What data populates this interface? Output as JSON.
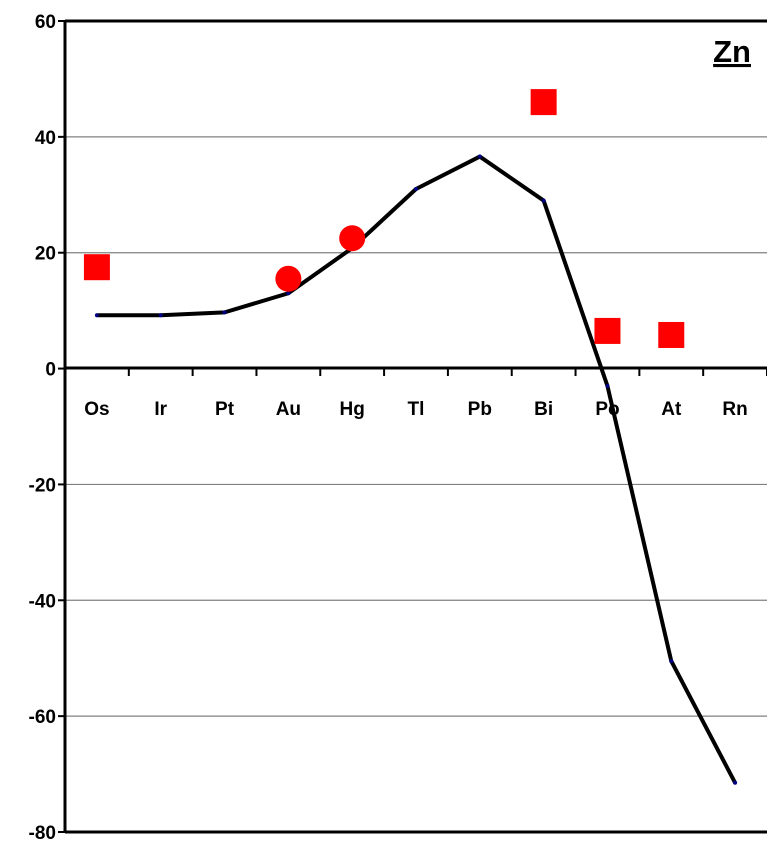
{
  "chart_data": {
    "type": "line",
    "panel_label": "Zn",
    "title": "",
    "xlabel": "",
    "ylabel": "",
    "categories": [
      "Os",
      "Ir",
      "Pt",
      "Au",
      "Hg",
      "Tl",
      "Pb",
      "Bi",
      "Po",
      "At",
      "Rn"
    ],
    "ylim": [
      -80,
      60
    ],
    "yticks": [
      60,
      40,
      20,
      0,
      -20,
      -40,
      -60,
      -80
    ],
    "grid": true,
    "legend": "none",
    "series": [
      {
        "kind": "line",
        "values": [
          9.2,
          9.2,
          9.7,
          13.0,
          20.8,
          31.0,
          36.6,
          29.0,
          -3.0,
          -50.5,
          -71.5
        ],
        "color": "#000000"
      },
      {
        "kind": "circle-markers",
        "points": [
          {
            "x": "Au",
            "y": 15.5
          },
          {
            "x": "Hg",
            "y": 22.5
          }
        ],
        "color": "#ff0000"
      },
      {
        "kind": "square-markers",
        "points": [
          {
            "x": "Os",
            "y": 17.5
          },
          {
            "x": "Bi",
            "y": 46.0
          },
          {
            "x": "Po",
            "y": 6.5
          },
          {
            "x": "At",
            "y": 5.8
          }
        ],
        "color": "#ff0000"
      }
    ]
  }
}
